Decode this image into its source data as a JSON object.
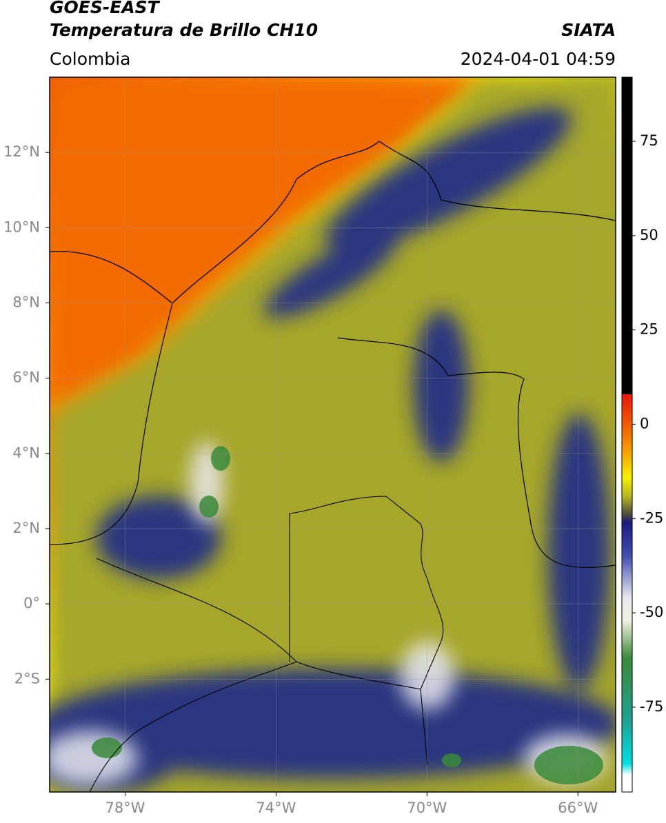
{
  "header": {
    "title_line1": "GOES-EAST",
    "title_line2": "Temperatura de Brillo CH10",
    "source": "SIATA",
    "region": "Colombia",
    "datetime": "2024-04-01 04:59"
  },
  "map": {
    "xlim": [
      -80,
      -65
    ],
    "ylim": [
      -5,
      14
    ],
    "xticks": [
      {
        "value": -78,
        "label": "78°W"
      },
      {
        "value": -74,
        "label": "74°W"
      },
      {
        "value": -70,
        "label": "70°W"
      },
      {
        "value": -66,
        "label": "66°W"
      }
    ],
    "yticks": [
      {
        "value": 12,
        "label": "12°N"
      },
      {
        "value": 10,
        "label": "10°N"
      },
      {
        "value": 8,
        "label": "8°N"
      },
      {
        "value": 6,
        "label": "6°N"
      },
      {
        "value": 4,
        "label": "4°N"
      },
      {
        "value": 2,
        "label": "2°N"
      },
      {
        "value": 0,
        "label": "0°"
      },
      {
        "value": -2,
        "label": "2°S"
      }
    ],
    "grid": true
  },
  "colorbar": {
    "clim": [
      -97.5,
      92
    ],
    "ticks": [
      75,
      50,
      25,
      0,
      -25,
      -50,
      -75
    ],
    "stops": [
      {
        "value": 92,
        "color": "#000000"
      },
      {
        "value": 8,
        "color": "#000000"
      },
      {
        "value": 7.9,
        "color": "#e8160c"
      },
      {
        "value": 0,
        "color": "#f25a00"
      },
      {
        "value": -8,
        "color": "#f7a800"
      },
      {
        "value": -14,
        "color": "#f5f000"
      },
      {
        "value": -19,
        "color": "#b8b820"
      },
      {
        "value": -24,
        "color": "#4a4a40"
      },
      {
        "value": -26,
        "color": "#1a1a80"
      },
      {
        "value": -35,
        "color": "#4050b0"
      },
      {
        "value": -46,
        "color": "#e8e8f0"
      },
      {
        "value": -52,
        "color": "#f0f0e0"
      },
      {
        "value": -62,
        "color": "#3a8a3a"
      },
      {
        "value": -78,
        "color": "#20a090"
      },
      {
        "value": -90,
        "color": "#00e0e0"
      },
      {
        "value": -93,
        "color": "#ffffff"
      },
      {
        "value": -97.5,
        "color": "#ffffff"
      }
    ]
  }
}
